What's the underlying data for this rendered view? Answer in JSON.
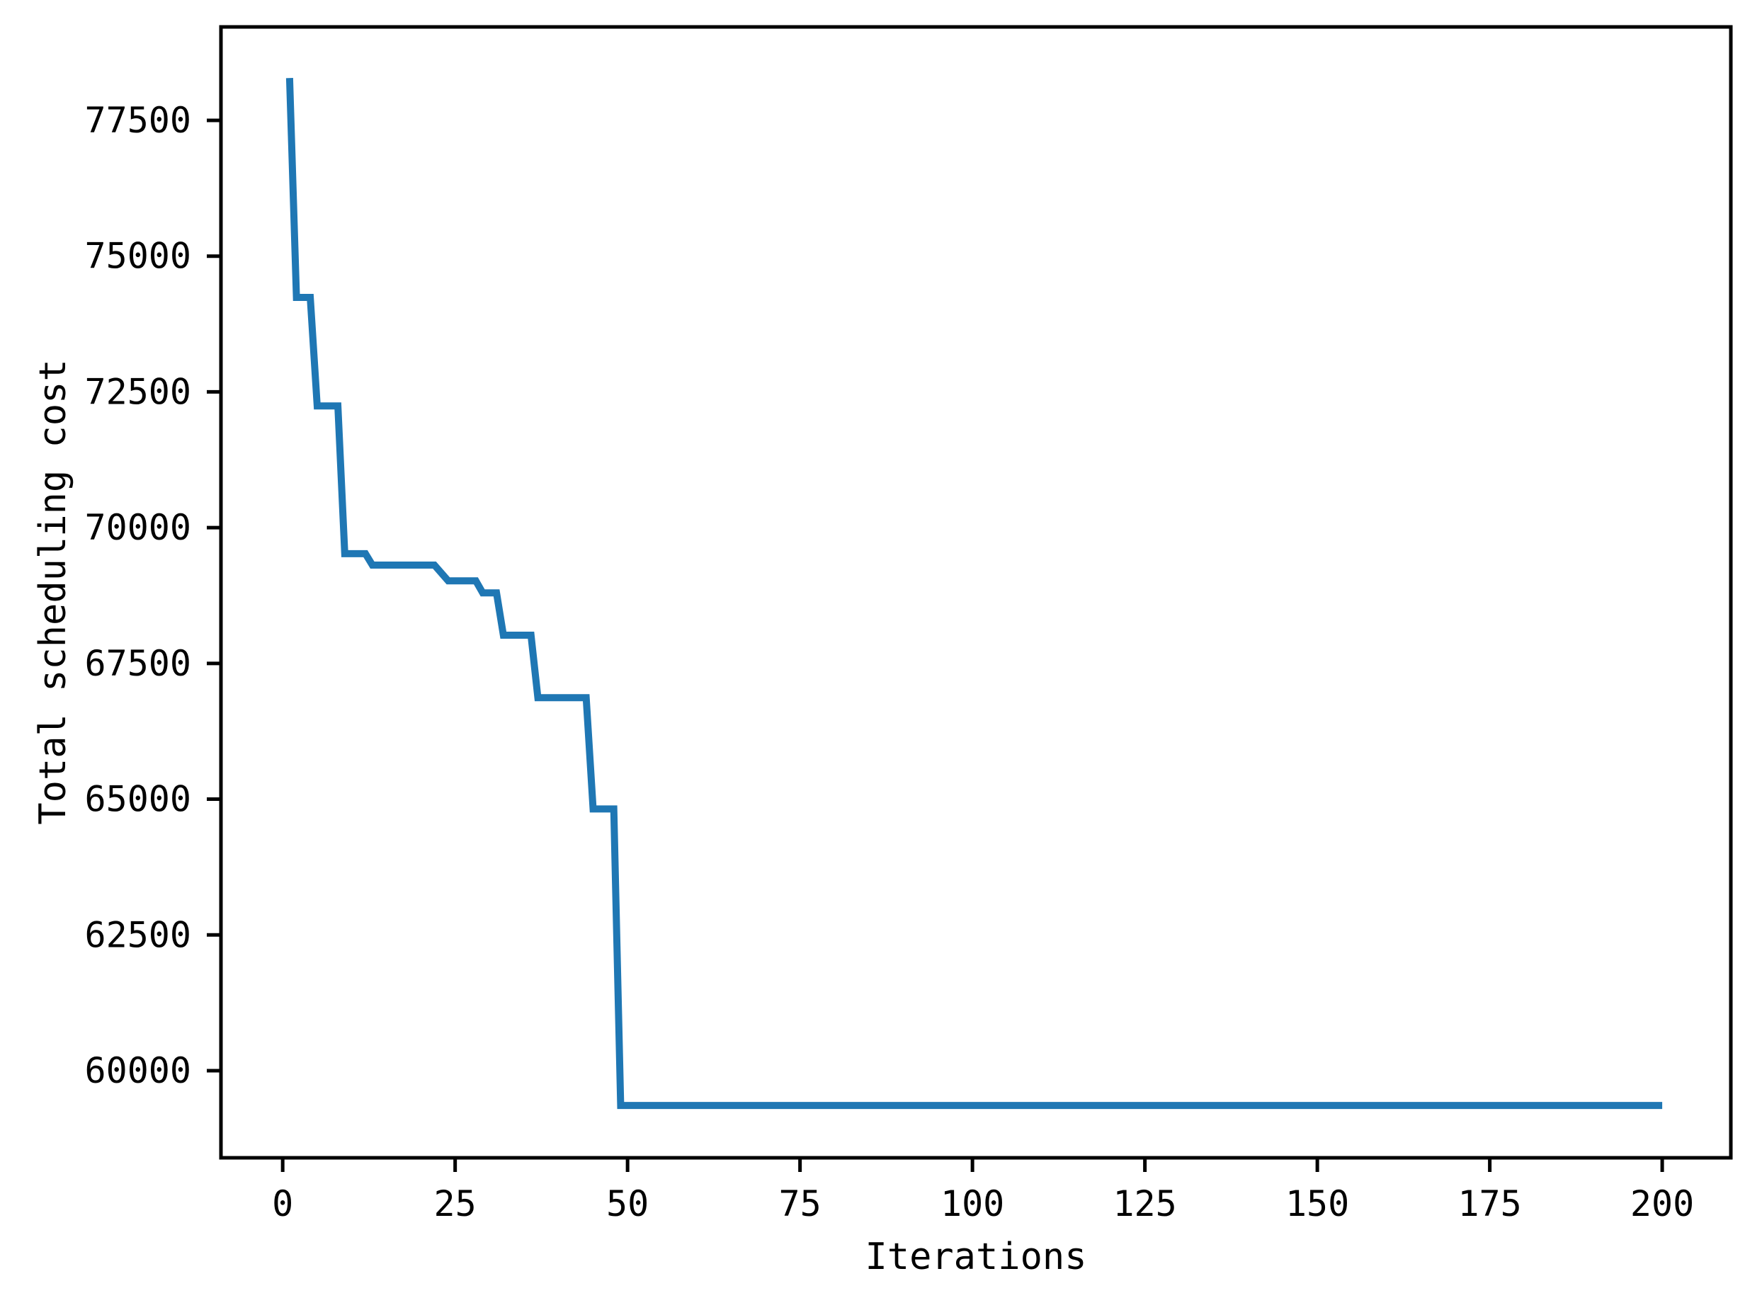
{
  "figure": {
    "background": "#ffffff",
    "axes_color": "#000000"
  },
  "chart_data": {
    "type": "line",
    "title": "",
    "xlabel": "Iterations",
    "ylabel": "Total scheduling cost",
    "x_ticks": [
      0,
      25,
      50,
      75,
      100,
      125,
      150,
      175,
      200
    ],
    "y_ticks": [
      60000,
      62500,
      65000,
      67500,
      70000,
      72500,
      75000,
      77500
    ],
    "xlim": [
      -8.95,
      209.95
    ],
    "ylim": [
      58396,
      79221
    ],
    "grid": false,
    "legend": "none",
    "series": [
      {
        "name": "Total scheduling cost",
        "color": "#1f77b4",
        "line_width": 10,
        "points": [
          [
            1,
            78280
          ],
          [
            2,
            74240
          ],
          [
            4,
            74240
          ],
          [
            5,
            72240
          ],
          [
            8,
            72240
          ],
          [
            9,
            69520
          ],
          [
            12,
            69520
          ],
          [
            13,
            69310
          ],
          [
            22,
            69310
          ],
          [
            24,
            69020
          ],
          [
            28,
            69020
          ],
          [
            29,
            68800
          ],
          [
            31,
            68800
          ],
          [
            32,
            68020
          ],
          [
            36,
            68020
          ],
          [
            37,
            66870
          ],
          [
            44,
            66870
          ],
          [
            45,
            64820
          ],
          [
            48,
            64820
          ],
          [
            49,
            59360
          ],
          [
            200,
            59360
          ]
        ]
      }
    ]
  }
}
